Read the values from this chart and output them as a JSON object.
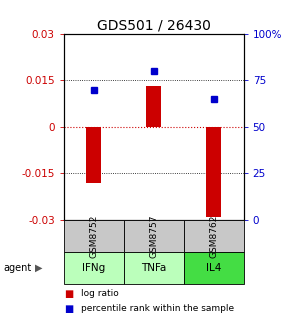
{
  "title": "GDS501 / 26430",
  "samples": [
    "GSM8752",
    "GSM8757",
    "GSM8762"
  ],
  "agents": [
    "IFNg",
    "TNFa",
    "IL4"
  ],
  "log_ratios": [
    -0.018,
    0.013,
    -0.029
  ],
  "percentile_ranks": [
    0.7,
    0.8,
    0.65
  ],
  "ylim_left": [
    -0.03,
    0.03
  ],
  "ylim_right": [
    0,
    1.0
  ],
  "yticks_left": [
    -0.03,
    -0.015,
    0,
    0.015,
    0.03
  ],
  "yticks_right": [
    0,
    0.25,
    0.5,
    0.75,
    1.0
  ],
  "ytick_labels_right": [
    "0",
    "25",
    "50",
    "75",
    "100%"
  ],
  "ytick_labels_left": [
    "-0.03",
    "-0.015",
    "0",
    "0.015",
    "0.03"
  ],
  "bar_color": "#cc0000",
  "dot_color": "#0000cc",
  "gsm_bg": "#c8c8c8",
  "agent_colors": [
    "#bbffbb",
    "#bbffbb",
    "#44dd44"
  ],
  "title_fontsize": 10,
  "tick_fontsize": 7.5,
  "gsm_fontsize": 6.5,
  "agent_fontsize": 7.5,
  "legend_fontsize": 6.5
}
